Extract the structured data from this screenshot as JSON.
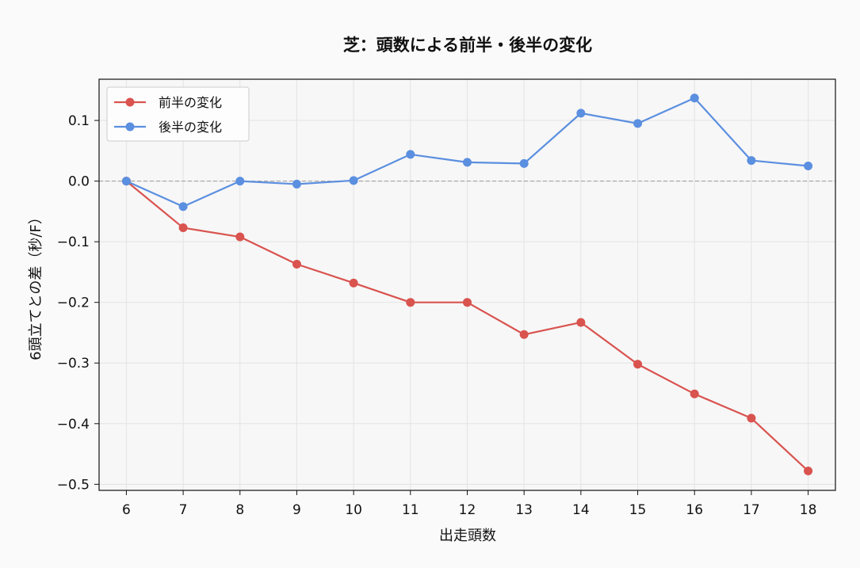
{
  "chart_data": {
    "type": "line",
    "title": "芝：頭数による前半・後半の変化",
    "xlabel": "出走頭数",
    "ylabel": "6頭立てとの差（秒/F）",
    "x": [
      6,
      7,
      8,
      9,
      10,
      11,
      12,
      13,
      14,
      15,
      16,
      17,
      18
    ],
    "x_tick_labels": [
      "6",
      "7",
      "8",
      "9",
      "10",
      "11",
      "12",
      "13",
      "14",
      "15",
      "16",
      "17",
      "18"
    ],
    "ylim": [
      -0.51,
      0.168
    ],
    "y_ticks": [
      0.1,
      0.0,
      -0.1,
      -0.2,
      -0.3,
      -0.4,
      -0.5
    ],
    "y_tick_labels": [
      "0.1",
      "0.0",
      "−0.1",
      "−0.2",
      "−0.3",
      "−0.4",
      "−0.5"
    ],
    "grid": true,
    "reference_line": 0.0,
    "legend_position": "top-left",
    "series": [
      {
        "name": "前半の変化",
        "color": "#d9534f",
        "values": [
          0.0,
          -0.077,
          -0.092,
          -0.137,
          -0.168,
          -0.2,
          -0.2,
          -0.253,
          -0.233,
          -0.302,
          -0.351,
          -0.391,
          -0.478
        ]
      },
      {
        "name": "後半の変化",
        "color": "#5b8fe0",
        "values": [
          0.0,
          -0.042,
          0.0,
          -0.005,
          0.001,
          0.044,
          0.031,
          0.029,
          0.112,
          0.095,
          0.137,
          0.034,
          0.025
        ]
      }
    ]
  }
}
